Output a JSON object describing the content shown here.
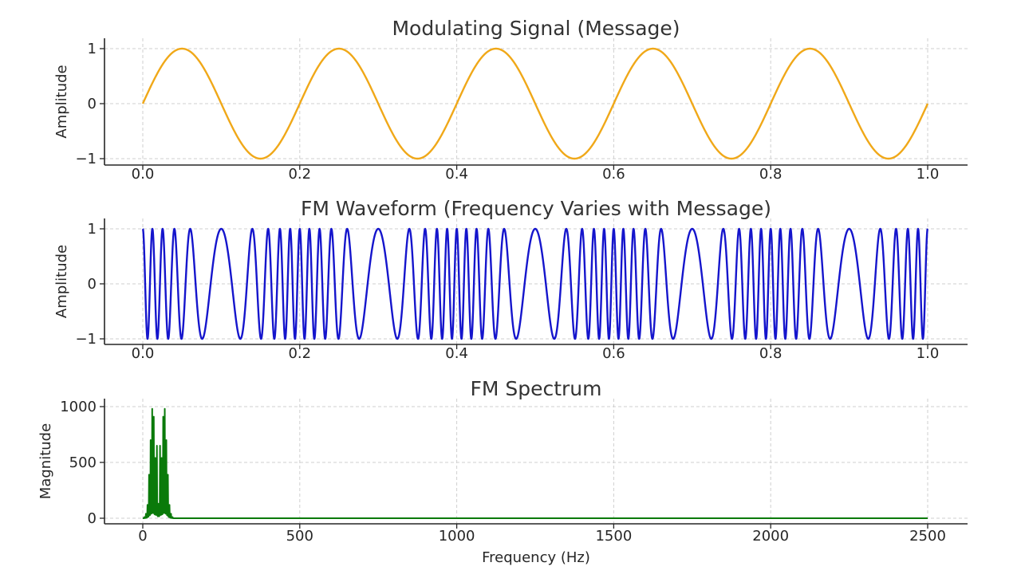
{
  "chart_data": [
    {
      "type": "line",
      "title": "Modulating Signal (Message)",
      "xlabel": "",
      "ylabel": "Amplitude",
      "xlim": [
        0,
        1
      ],
      "ylim": [
        -1.1,
        1.1
      ],
      "x_ticks": [
        0.0,
        0.2,
        0.4,
        0.6,
        0.8,
        1.0
      ],
      "x_tick_labels": [
        "0.0",
        "0.2",
        "0.4",
        "0.6",
        "0.8",
        "1.0"
      ],
      "y_ticks": [
        1,
        0,
        -1
      ],
      "y_tick_labels": [
        "1",
        "0",
        "−1"
      ],
      "grid": true,
      "series": [
        {
          "color": "#f0a818",
          "function": "sin(2*pi*5*t)",
          "x": [
            0,
            0.05,
            0.1,
            0.15,
            0.2,
            0.25,
            0.3,
            0.35,
            0.4,
            0.45,
            0.5,
            0.55,
            0.6,
            0.65,
            0.7,
            0.75,
            0.8,
            0.85,
            0.9,
            0.95,
            1.0
          ],
          "values": [
            0,
            1,
            0,
            -1,
            0,
            1,
            0,
            -1,
            0,
            1,
            0,
            -1,
            0,
            1,
            0,
            -1,
            0,
            1,
            0,
            -1,
            0
          ]
        }
      ]
    },
    {
      "type": "line",
      "title": "FM Waveform (Frequency Varies with Message)",
      "xlabel": "",
      "ylabel": "Amplitude",
      "xlim": [
        0,
        1
      ],
      "ylim": [
        -1.1,
        1.1
      ],
      "x_ticks": [
        0.0,
        0.2,
        0.4,
        0.6,
        0.8,
        1.0
      ],
      "x_tick_labels": [
        "0.0",
        "0.2",
        "0.4",
        "0.6",
        "0.8",
        "1.0"
      ],
      "y_ticks": [
        1,
        0,
        -1
      ],
      "y_tick_labels": [
        "1",
        "0",
        "−1"
      ],
      "grid": true,
      "series": [
        {
          "color": "#1515cc",
          "function": "cos(2*pi*50*t + 6.5*sin(2*pi*5*t))",
          "carrier_frequency_hz": 50,
          "message_frequency_hz": 5,
          "frequency_deviation_hz": 32.5
        }
      ]
    },
    {
      "type": "line",
      "title": "FM Spectrum",
      "xlabel": "Frequency (Hz)",
      "ylabel": "Magnitude",
      "xlim": [
        0,
        2500
      ],
      "ylim": [
        0,
        1000
      ],
      "x_ticks": [
        0,
        500,
        1000,
        1500,
        2000,
        2500
      ],
      "x_tick_labels": [
        "0",
        "500",
        "1000",
        "1500",
        "2000",
        "2500"
      ],
      "y_ticks": [
        1000,
        500,
        0
      ],
      "y_tick_labels": [
        "1000",
        "500",
        "0"
      ],
      "grid": true,
      "series": [
        {
          "color": "#0a7a0a",
          "x": [
            0,
            5,
            10,
            15,
            20,
            25,
            30,
            35,
            40,
            45,
            50,
            55,
            60,
            65,
            70,
            75,
            80,
            85,
            90,
            95,
            100,
            2500
          ],
          "values": [
            0,
            10,
            40,
            120,
            390,
            700,
            980,
            910,
            540,
            650,
            130,
            650,
            540,
            910,
            980,
            700,
            390,
            120,
            40,
            10,
            0,
            0
          ]
        }
      ]
    }
  ]
}
